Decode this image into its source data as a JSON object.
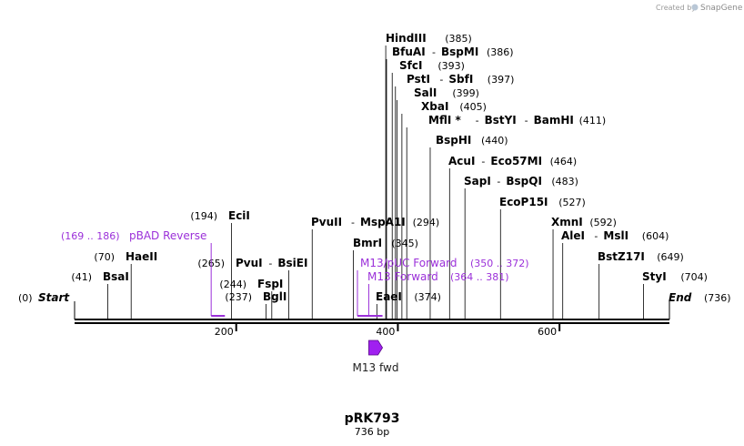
{
  "credit": {
    "prefix": "Created by",
    "brand": "SnapGene"
  },
  "plasmid": {
    "name": "pRK793",
    "size_label": "736 bp"
  },
  "sequence": {
    "length": 736
  },
  "ruler": {
    "ticks": [
      200,
      400,
      600
    ]
  },
  "ends": {
    "start": {
      "label": "Start",
      "pos_label": "(0)",
      "pos": 0
    },
    "end": {
      "label": "End",
      "pos_label": "(736)",
      "pos": 736
    }
  },
  "sites": [
    {
      "pos": 41,
      "name": "BsaI",
      "pos_label": "(41)"
    },
    {
      "pos": 70,
      "name": "HaeII",
      "pos_label": "(70)"
    },
    {
      "pos": 194,
      "name": "EciI",
      "pos_label": "(194)"
    },
    {
      "pos": 237,
      "name": "BglI",
      "pos_label": "(237)"
    },
    {
      "pos": 244,
      "name": "FspI",
      "pos_label": "(244)"
    },
    {
      "pos": 265,
      "name": "PvuI",
      "name2": "BsiEI",
      "pos_label": "(265)"
    },
    {
      "pos": 294,
      "name": "PvuII",
      "name2": "MspA1I",
      "pos_label": "(294)"
    },
    {
      "pos": 345,
      "name": "BmrI",
      "pos_label": "(345)"
    },
    {
      "pos": 374,
      "name": "EaeI",
      "pos_label": "(374)"
    },
    {
      "pos": 385,
      "name": "HindIII",
      "pos_label": "(385)"
    },
    {
      "pos": 386,
      "name": "BfuAI",
      "name2": "BspMI",
      "pos_label": "(386)"
    },
    {
      "pos": 393,
      "name": "SfcI",
      "pos_label": "(393)"
    },
    {
      "pos": 397,
      "name": "PstI",
      "name2": "SbfI",
      "pos_label": "(397)"
    },
    {
      "pos": 399,
      "name": "SalI",
      "pos_label": "(399)"
    },
    {
      "pos": 405,
      "name": "XbaI",
      "pos_label": "(405)"
    },
    {
      "pos": 411,
      "name": "MflI *",
      "name2": "BstYI",
      "name3": "BamHI",
      "pos_label": "(411)"
    },
    {
      "pos": 440,
      "name": "BspHI",
      "pos_label": "(440)"
    },
    {
      "pos": 464,
      "name": "AcuI",
      "name2": "Eco57MI",
      "pos_label": "(464)"
    },
    {
      "pos": 483,
      "name": "SapI",
      "name2": "BspQI",
      "pos_label": "(483)"
    },
    {
      "pos": 527,
      "name": "EcoP15I",
      "pos_label": "(527)"
    },
    {
      "pos": 592,
      "name": "XmnI",
      "pos_label": "(592)"
    },
    {
      "pos": 604,
      "name": "AleI",
      "name2": "MslI",
      "pos_label": "(604)"
    },
    {
      "pos": 649,
      "name": "BstZ17I",
      "pos_label": "(649)"
    },
    {
      "pos": 704,
      "name": "StyI",
      "pos_label": "(704)"
    }
  ],
  "primers": [
    {
      "name": "pBAD Reverse",
      "range": "(169 .. 186)",
      "start": 169,
      "end": 186
    },
    {
      "name": "M13/pUC Forward",
      "range": "(350 .. 372)",
      "start": 350,
      "end": 372
    },
    {
      "name": "M13 Forward",
      "range": "(364 .. 381)",
      "start": 364,
      "end": 381
    }
  ],
  "features": [
    {
      "name": "M13 fwd",
      "start": 364,
      "end": 381,
      "direction": "forward",
      "color": "#a020f0"
    }
  ],
  "colors": {
    "primer": "#9b30d9",
    "backbone": "#000000",
    "credit": "#9a9a9a",
    "feature": "#a020f0"
  }
}
